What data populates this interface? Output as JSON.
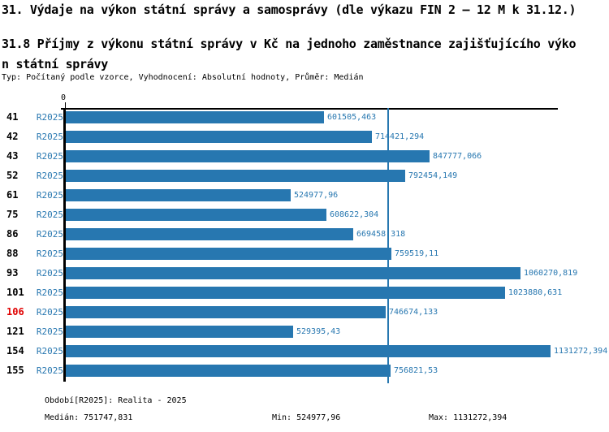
{
  "header": {
    "title": "31. Výdaje na výkon státní správy a samosprávy (dle výkazu FIN 2 – 12 M k 31.12.)",
    "subtitle_lines": [
      "31.8 Příjmy z výkonu státní správy v Kč na jednoho zaměstnance zajišťujícího výko",
      "n státní správy"
    ],
    "meta": "Typ: Počítaný podle vzorce, Vyhodnocení: Absolutní hodnoty, Průměr: Medián"
  },
  "colors": {
    "bar": "#2777b0",
    "blue_text": "#2777b0",
    "median_line": "#2777b0",
    "highlight_red": "#e00000",
    "axis": "#000000"
  },
  "chart_data": {
    "type": "bar",
    "orientation": "horizontal",
    "title": "31.8 Příjmy z výkonu státní správy v Kč na jednoho zaměstnance zajišťujícího výkon státní správy",
    "x_axis_zero_label": "0",
    "xlim": [
      0,
      1146000
    ],
    "grid": false,
    "legend": false,
    "series_name": "R2025",
    "categories": [
      "41",
      "42",
      "43",
      "52",
      "61",
      "75",
      "86",
      "88",
      "93",
      "101",
      "106",
      "121",
      "154",
      "155"
    ],
    "values": [
      601505.463,
      714421.294,
      847777.066,
      792454.149,
      524977.96,
      608622.304,
      669458.318,
      759519.11,
      1060270.819,
      1023880.631,
      746674.133,
      529395.43,
      1131272.394,
      756821.53
    ],
    "value_labels": [
      "601505,463",
      "714421,294",
      "847777,066",
      "792454,149",
      "524977,96",
      "608622,304",
      "669458,318",
      "759519,11",
      "1060270,819",
      "1023880,631",
      "746674,133",
      "529395,43",
      "1131272,394",
      "756821,53"
    ],
    "highlighted_category": "106",
    "median": 751747.831,
    "min": 524977.96,
    "max": 1131272.394
  },
  "footer": {
    "period": "Období[R2025]: Realita - 2025",
    "median": "Medián: 751747,831",
    "min": "Min: 524977,96",
    "max": "Max: 1131272,394"
  }
}
